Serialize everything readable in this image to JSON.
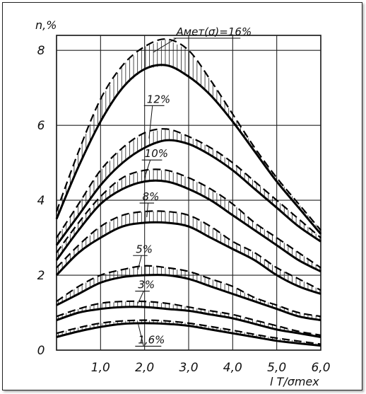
{
  "chart_data": {
    "type": "line",
    "ylabel": "n,%",
    "xlabel": "l T/σmex",
    "xlim": [
      0,
      6.0
    ],
    "ylim": [
      0,
      8.4
    ],
    "x_ticks": [
      {
        "value": 1.0,
        "label": "1,0"
      },
      {
        "value": 2.0,
        "label": "2,0"
      },
      {
        "value": 3.0,
        "label": "3,0"
      },
      {
        "value": 4.0,
        "label": "4,0"
      },
      {
        "value": 5.0,
        "label": "5,0"
      },
      {
        "value": 6.0,
        "label": "6,0"
      }
    ],
    "y_ticks": [
      {
        "value": 0,
        "label": "0"
      },
      {
        "value": 2,
        "label": "2"
      },
      {
        "value": 4,
        "label": "4"
      },
      {
        "value": 6,
        "label": "6"
      },
      {
        "value": 8,
        "label": "8"
      }
    ],
    "grid": true,
    "line_styles": {
      "solid": "lower bound",
      "dashed": "upper bound",
      "hatched": "band between"
    },
    "series": [
      {
        "label": "Aмет(σ)=16%",
        "x": [
          0,
          0.5,
          1.0,
          1.5,
          2.0,
          2.5,
          3.0,
          3.5,
          4.0,
          4.5,
          5.0,
          5.5,
          6.0
        ],
        "solid": [
          3.5,
          4.9,
          6.1,
          7.0,
          7.5,
          7.6,
          7.3,
          6.8,
          6.1,
          5.3,
          4.5,
          3.8,
          3.1
        ],
        "dashed": [
          3.7,
          5.3,
          6.7,
          7.6,
          8.1,
          8.3,
          8.0,
          7.2,
          6.3,
          5.4,
          4.6,
          3.9,
          3.2
        ]
      },
      {
        "label": "12%",
        "x": [
          0,
          0.5,
          1.0,
          1.5,
          2.0,
          2.5,
          3.0,
          3.5,
          4.0,
          4.5,
          5.0,
          5.5,
          6.0
        ],
        "solid": [
          2.8,
          3.6,
          4.4,
          5.0,
          5.4,
          5.6,
          5.5,
          5.2,
          4.8,
          4.3,
          3.8,
          3.3,
          2.9
        ],
        "dashed": [
          3.0,
          3.9,
          4.8,
          5.4,
          5.8,
          5.9,
          5.7,
          5.4,
          5.0,
          4.5,
          4.0,
          3.5,
          3.0
        ]
      },
      {
        "label": "10%",
        "x": [
          0,
          0.5,
          1.0,
          1.5,
          2.0,
          2.5,
          3.0,
          3.5,
          4.0,
          4.5,
          5.0,
          5.5,
          6.0
        ],
        "solid": [
          2.4,
          3.2,
          3.9,
          4.3,
          4.5,
          4.5,
          4.3,
          4.0,
          3.6,
          3.2,
          2.8,
          2.4,
          2.1
        ],
        "dashed": [
          2.6,
          3.4,
          4.1,
          4.6,
          4.8,
          4.8,
          4.6,
          4.3,
          3.9,
          3.4,
          3.0,
          2.6,
          2.2
        ]
      },
      {
        "label": "8%",
        "x": [
          0,
          0.5,
          1.0,
          1.5,
          2.0,
          2.5,
          3.0,
          3.5,
          4.0,
          4.5,
          5.0,
          5.5,
          6.0
        ],
        "solid": [
          2.0,
          2.6,
          3.0,
          3.3,
          3.4,
          3.4,
          3.3,
          3.0,
          2.7,
          2.4,
          2.0,
          1.7,
          1.5
        ],
        "dashed": [
          2.2,
          2.8,
          3.3,
          3.6,
          3.7,
          3.7,
          3.6,
          3.3,
          2.9,
          2.6,
          2.2,
          1.9,
          1.6
        ]
      },
      {
        "label": "5%",
        "x": [
          0,
          0.5,
          1.0,
          1.5,
          2.0,
          2.5,
          3.0,
          3.5,
          4.0,
          4.5,
          5.0,
          5.5,
          6.0
        ],
        "solid": [
          1.2,
          1.5,
          1.8,
          1.95,
          2.0,
          2.0,
          1.9,
          1.7,
          1.5,
          1.3,
          1.1,
          0.9,
          0.8
        ],
        "dashed": [
          1.3,
          1.7,
          2.0,
          2.15,
          2.25,
          2.2,
          2.1,
          1.9,
          1.7,
          1.4,
          1.2,
          1.0,
          0.9
        ]
      },
      {
        "label": "3%",
        "x": [
          0,
          0.5,
          1.0,
          1.5,
          2.0,
          2.5,
          3.0,
          3.5,
          4.0,
          4.5,
          5.0,
          5.5,
          6.0
        ],
        "solid": [
          0.8,
          1.0,
          1.1,
          1.15,
          1.15,
          1.1,
          1.05,
          0.95,
          0.85,
          0.7,
          0.55,
          0.45,
          0.35
        ],
        "dashed": [
          0.9,
          1.1,
          1.25,
          1.3,
          1.3,
          1.25,
          1.15,
          1.05,
          0.95,
          0.8,
          0.65,
          0.5,
          0.4
        ]
      },
      {
        "label": "1,6%",
        "x": [
          0,
          0.5,
          1.0,
          1.5,
          2.0,
          2.5,
          3.0,
          3.5,
          4.0,
          4.5,
          5.0,
          5.5,
          6.0
        ],
        "solid": [
          0.35,
          0.5,
          0.62,
          0.7,
          0.72,
          0.7,
          0.65,
          0.55,
          0.45,
          0.35,
          0.25,
          0.18,
          0.12
        ],
        "dashed": [
          0.45,
          0.6,
          0.72,
          0.78,
          0.8,
          0.78,
          0.72,
          0.63,
          0.53,
          0.42,
          0.32,
          0.24,
          0.16
        ]
      }
    ]
  }
}
